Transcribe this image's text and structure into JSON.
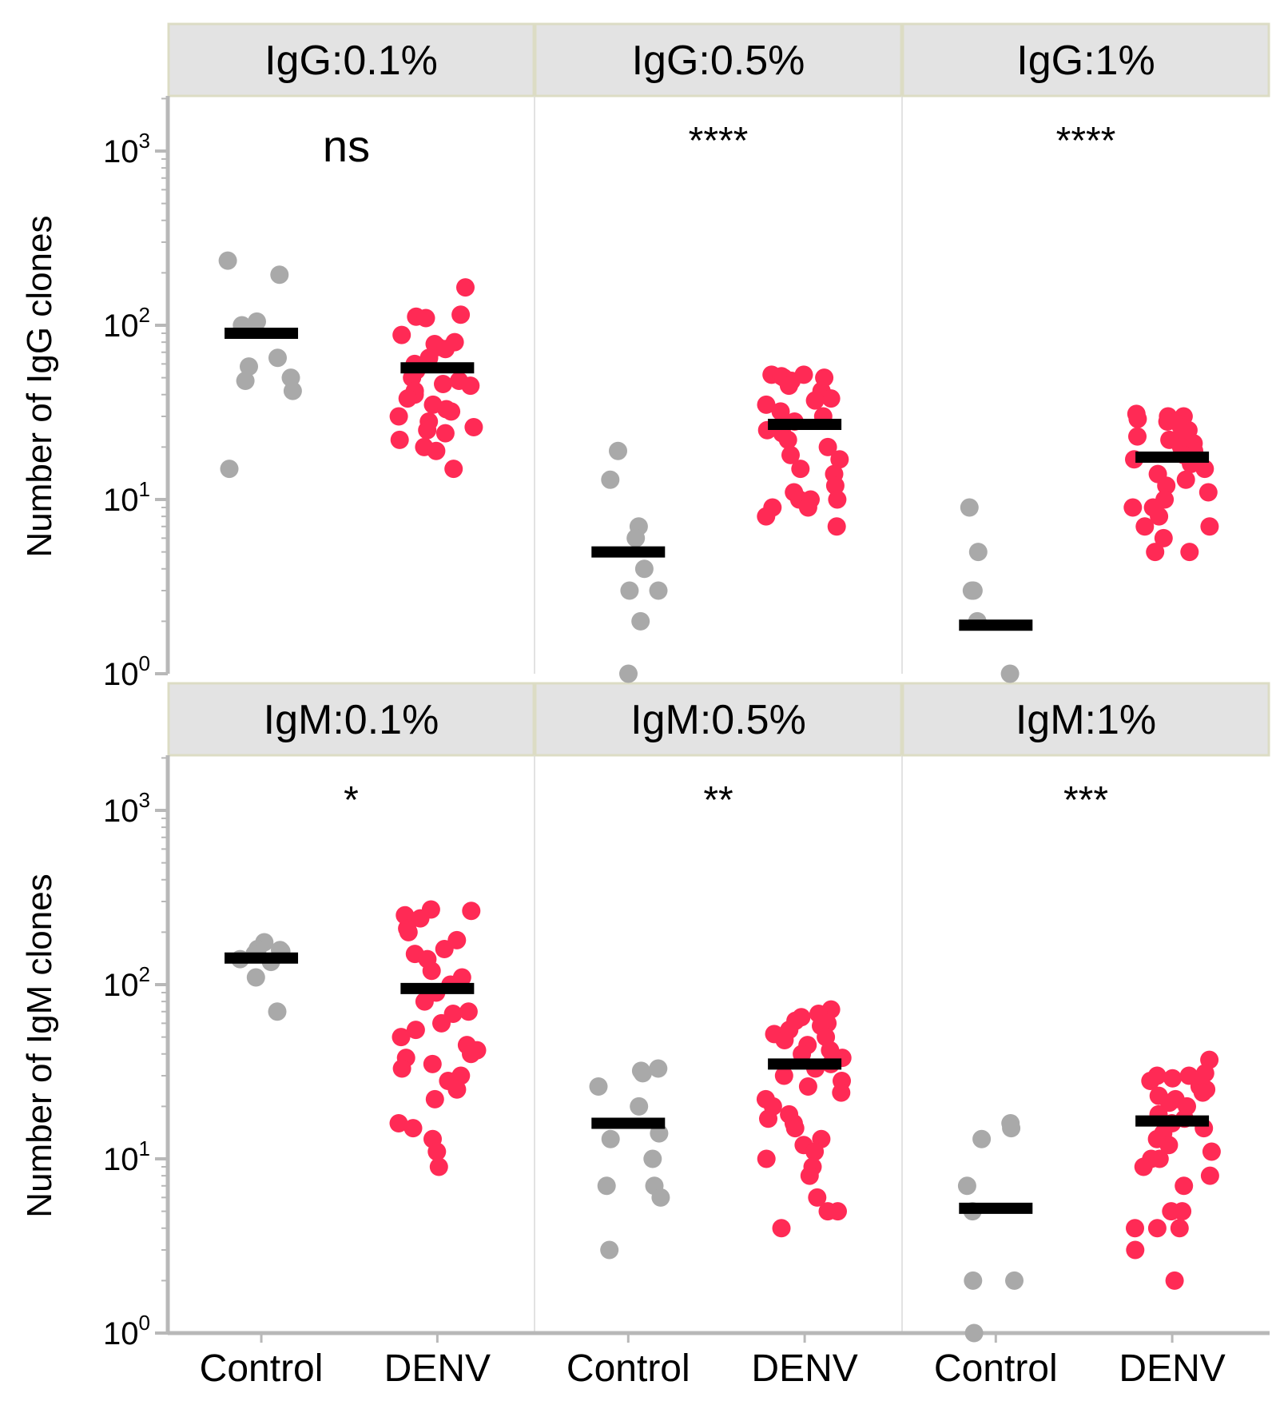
{
  "chart_data": {
    "type": "scatter",
    "y_scale": "log",
    "ylim": [
      1,
      2000
    ],
    "y_ticks": [
      {
        "value": 1,
        "base": "10",
        "exp": "0"
      },
      {
        "value": 10,
        "base": "10",
        "exp": "1"
      },
      {
        "value": 100,
        "base": "10",
        "exp": "2"
      },
      {
        "value": 1000,
        "base": "10",
        "exp": "3"
      }
    ],
    "categories": [
      "Control",
      "DENV"
    ],
    "colors": {
      "Control": "#a9a9a9",
      "DENV": "#ff2a55",
      "median": "#000000"
    },
    "rows": [
      {
        "ylabel": "Number of IgG clones",
        "panels": [
          {
            "strip": "IgG:0.1%",
            "significance": "ns",
            "groups": [
              {
                "name": "Control",
                "median": 90,
                "values": [
                  235,
                  195,
                  105,
                  100,
                  65,
                  58,
                  50,
                  48,
                  42,
                  15
                ]
              },
              {
                "name": "DENV",
                "median": 57,
                "values": [
                  165,
                  115,
                  112,
                  110,
                  88,
                  80,
                  78,
                  75,
                  73,
                  65,
                  60,
                  55,
                  50,
                  48,
                  46,
                  45,
                  42,
                  40,
                  38,
                  35,
                  33,
                  32,
                  30,
                  28,
                  26,
                  25,
                  24,
                  22,
                  20,
                  19,
                  15
                ]
              }
            ]
          },
          {
            "strip": "IgG:0.5%",
            "significance": "****",
            "groups": [
              {
                "name": "Control",
                "median": 5,
                "values": [
                  19,
                  13,
                  7,
                  6,
                  4,
                  3,
                  3,
                  2,
                  1
                ]
              },
              {
                "name": "DENV",
                "median": 27,
                "values": [
                  52,
                  52,
                  51,
                  50,
                  50,
                  48,
                  45,
                  42,
                  40,
                  38,
                  37,
                  35,
                  32,
                  30,
                  28,
                  25,
                  24,
                  22,
                  20,
                  18,
                  17,
                  15,
                  14,
                  12,
                  11,
                  10,
                  10,
                  10,
                  9,
                  9,
                  8,
                  7
                ]
              }
            ]
          },
          {
            "strip": "IgG:1%",
            "significance": "****",
            "groups": [
              {
                "name": "Control",
                "median": 1.9,
                "values": [
                  9,
                  5,
                  3,
                  3,
                  2,
                  1
                ]
              },
              {
                "name": "DENV",
                "median": 17.5,
                "values": [
                  31,
                  30,
                  30,
                  29,
                  28,
                  27,
                  26,
                  25,
                  24,
                  23,
                  22,
                  21,
                  20,
                  19,
                  18,
                  17,
                  16,
                  15,
                  14,
                  13,
                  12,
                  11,
                  10,
                  9,
                  9,
                  8,
                  7,
                  7,
                  6,
                  5,
                  5
                ]
              }
            ]
          }
        ]
      },
      {
        "ylabel": "Number of IgM clones",
        "panels": [
          {
            "strip": "IgM:0.1%",
            "significance": "*",
            "groups": [
              {
                "name": "Control",
                "median": 142,
                "values": [
                  175,
                  160,
                  158,
                  155,
                  150,
                  140,
                  135,
                  110,
                  70
                ]
              },
              {
                "name": "DENV",
                "median": 95,
                "values": [
                  270,
                  265,
                  250,
                  240,
                  210,
                  200,
                  180,
                  160,
                  150,
                  140,
                  120,
                  110,
                  100,
                  90,
                  80,
                  70,
                  68,
                  60,
                  55,
                  50,
                  45,
                  42,
                  40,
                  38,
                  35,
                  33,
                  30,
                  28,
                  25,
                  22,
                  16,
                  15,
                  13,
                  11,
                  9
                ]
              }
            ]
          },
          {
            "strip": "IgM:0.5%",
            "significance": "**",
            "groups": [
              {
                "name": "Control",
                "median": 16,
                "values": [
                  33,
                  32,
                  31,
                  26,
                  20,
                  14,
                  13,
                  10,
                  7,
                  7,
                  6,
                  3
                ]
              },
              {
                "name": "DENV",
                "median": 35,
                "values": [
                  72,
                  68,
                  65,
                  62,
                  60,
                  58,
                  55,
                  52,
                  50,
                  48,
                  45,
                  42,
                  40,
                  38,
                  35,
                  33,
                  30,
                  28,
                  26,
                  24,
                  22,
                  20,
                  18,
                  17,
                  16,
                  15,
                  13,
                  12,
                  11,
                  10,
                  9,
                  8,
                  6,
                  5,
                  5,
                  4
                ]
              }
            ]
          },
          {
            "strip": "IgM:1%",
            "significance": "***",
            "groups": [
              {
                "name": "Control",
                "median": 5.2,
                "values": [
                  16,
                  15,
                  13,
                  7,
                  5,
                  2,
                  2,
                  1
                ]
              },
              {
                "name": "DENV",
                "median": 16.5,
                "values": [
                  37,
                  31,
                  30,
                  30,
                  29,
                  28,
                  26,
                  25,
                  24,
                  23,
                  22,
                  21,
                  20,
                  18,
                  17,
                  16,
                  15,
                  14,
                  13,
                  12,
                  11,
                  10,
                  10,
                  9,
                  8,
                  7,
                  5,
                  5,
                  4,
                  4,
                  4,
                  3,
                  2
                ]
              }
            ]
          }
        ]
      }
    ]
  }
}
